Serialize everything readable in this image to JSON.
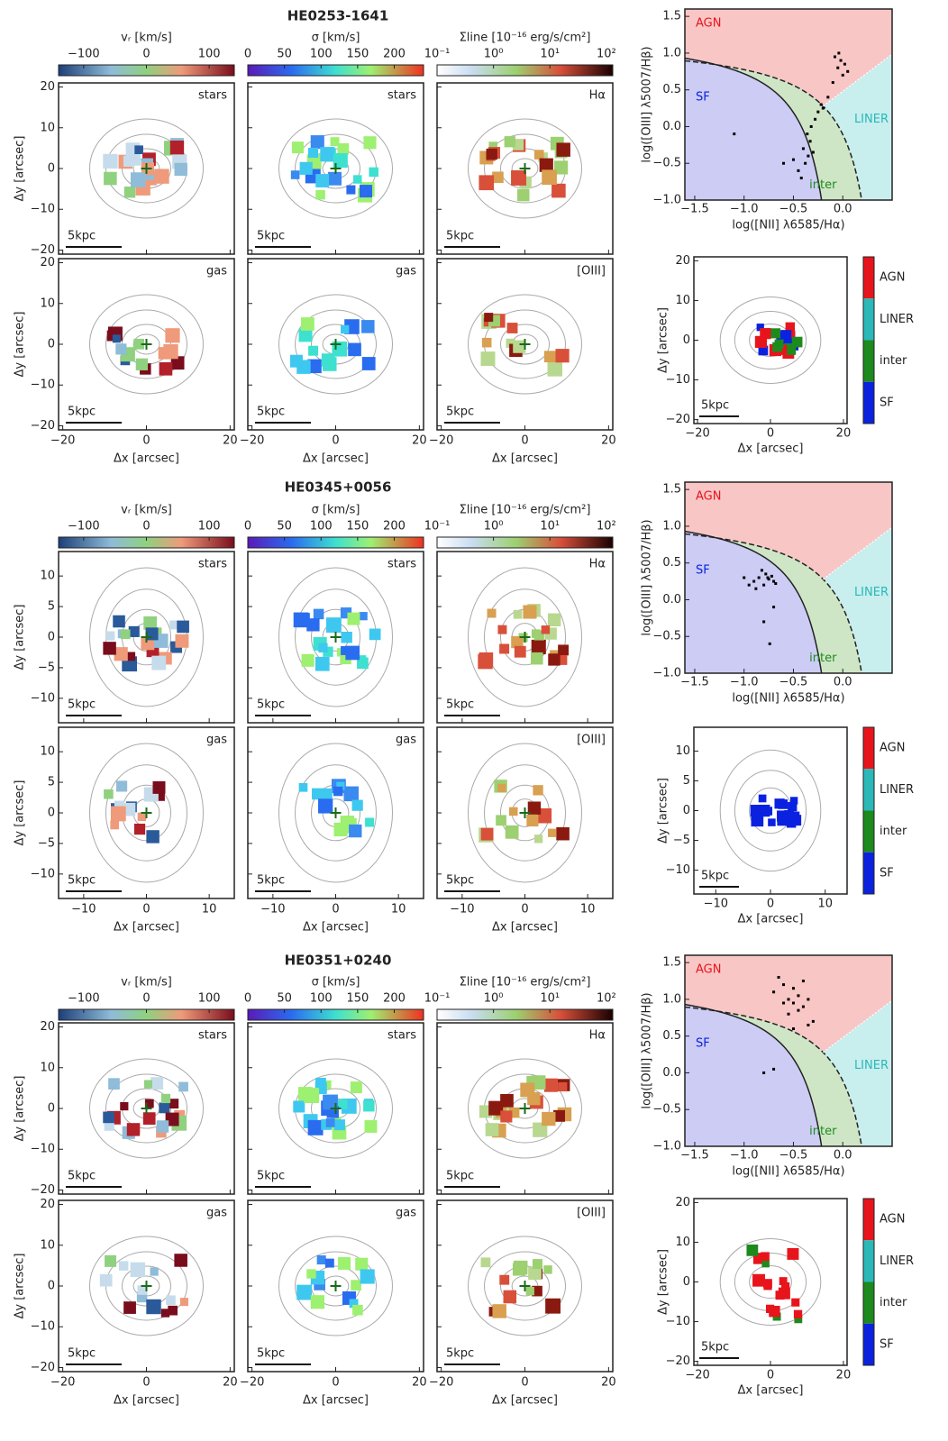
{
  "figure": {
    "colorbars": [
      {
        "label": "vᵣ [km/s]",
        "lim": [
          -140,
          140
        ],
        "ticks": [
          {
            "value": -100,
            "label": "−100"
          },
          0,
          100
        ],
        "cmap": "rdbu"
      },
      {
        "label": "σ [km/s]",
        "lim": [
          0,
          240
        ],
        "ticks": [
          0,
          50,
          100,
          150,
          200
        ],
        "cmap": "rainbow"
      },
      {
        "label": "Σline [10⁻¹⁶ erg/s/cm²]",
        "lim": [
          0.1,
          130
        ],
        "log": true,
        "ticks": [
          {
            "value": 0.1,
            "label": "10⁻¹"
          },
          {
            "value": 1,
            "label": "10⁰"
          },
          {
            "value": 10,
            "label": "10¹"
          },
          {
            "value": 100,
            "label": "10²"
          }
        ],
        "cmap": "heat"
      }
    ],
    "panel_labels": [
      [
        "stars",
        "stars",
        "Hα"
      ],
      [
        "gas",
        "gas",
        "[OIII]"
      ]
    ],
    "scale_bar": "5kpc",
    "xlabel": "Δx [arcsec]",
    "ylabel": "Δy [arcsec]",
    "bpt": {
      "xlabel": "log([NII] λ6585/Hα)",
      "ylabel": "log([OIII] λ5007/Hβ)",
      "xlim": [
        -1.6,
        0.5
      ],
      "ylim": [
        -1,
        1.6
      ],
      "xticks": [
        {
          "value": -1.5,
          "label": "−1.5"
        },
        {
          "value": -1,
          "label": "−1.0"
        },
        {
          "value": -0.5,
          "label": "−0.5"
        },
        {
          "value": 0,
          "label": "0.0"
        }
      ],
      "yticks": [
        {
          "value": -1,
          "label": "−1.0"
        },
        {
          "value": -0.5,
          "label": "−0.5"
        },
        {
          "value": 0,
          "label": "0.0"
        },
        0.5,
        {
          "value": 1,
          "label": "1.0"
        },
        1.5
      ]
    },
    "classes": [
      {
        "name": "AGN",
        "color": "#e8141c",
        "region_color": "#f9c6c6"
      },
      {
        "name": "LINER",
        "color": "#2ab8b8",
        "region_color": "#c8eeee"
      },
      {
        "name": "inter",
        "color": "#1d8a1d",
        "region_color": "#cfe6c6"
      },
      {
        "name": "SF",
        "color": "#0a22e0",
        "region_color": "#ccccf4"
      }
    ],
    "galaxies": [
      {
        "title": "HE0253-1641",
        "map_lim": [
          -21,
          21
        ],
        "map_xticks": [
          {
            "value": -20,
            "label": "−20"
          },
          0,
          20
        ],
        "map_yticks": [
          {
            "value": -20,
            "label": "−20"
          },
          {
            "value": -10,
            "label": "−10"
          },
          0,
          10,
          20
        ],
        "bpt_points": {
          "x": [
            -0.45,
            -0.4,
            -0.38,
            -0.35,
            -0.33,
            -0.3,
            -0.42,
            -0.36,
            -0.32,
            -0.28,
            -0.25,
            -0.22,
            -0.2,
            -0.15,
            -0.1,
            -0.05,
            -0.02,
            0.0,
            0.02,
            -0.08,
            -0.04,
            0.05,
            -0.5,
            -1.1,
            -0.6
          ],
          "y": [
            -0.6,
            -0.3,
            -0.5,
            -0.4,
            -0.2,
            -0.35,
            -0.7,
            -0.1,
            0.0,
            0.1,
            0.2,
            0.3,
            0.25,
            0.4,
            0.6,
            0.8,
            0.9,
            0.7,
            0.85,
            0.95,
            1.0,
            0.75,
            -0.45,
            -0.1,
            -0.5
          ]
        }
      },
      {
        "title": "HE0345+0056",
        "map_lim": [
          -14,
          14
        ],
        "map_xticks": [
          {
            "value": -10,
            "label": "−10"
          },
          0,
          10
        ],
        "map_yticks": [
          {
            "value": -10,
            "label": "−10"
          },
          {
            "value": -5,
            "label": "−5"
          },
          0,
          5,
          10
        ],
        "bpt_points": {
          "x": [
            -0.9,
            -0.85,
            -0.8,
            -0.78,
            -0.75,
            -0.72,
            -0.7,
            -0.95,
            -0.88,
            -0.82,
            -0.76,
            -0.68,
            -1.0,
            -0.8,
            -0.7,
            -0.74
          ],
          "y": [
            0.25,
            0.3,
            0.2,
            0.35,
            0.28,
            0.32,
            0.25,
            0.2,
            0.15,
            0.4,
            0.3,
            0.22,
            0.3,
            -0.3,
            -0.1,
            -0.6
          ]
        }
      },
      {
        "title": "HE0351+0240",
        "map_lim": [
          -21,
          21
        ],
        "map_xticks": [
          {
            "value": -20,
            "label": "−20"
          },
          0,
          20
        ],
        "map_yticks": [
          {
            "value": -20,
            "label": "−20"
          },
          {
            "value": -10,
            "label": "−10"
          },
          0,
          10,
          20
        ],
        "bpt_points": {
          "x": [
            -0.7,
            -0.6,
            -0.55,
            -0.5,
            -0.45,
            -0.4,
            -0.35,
            -0.5,
            -0.55,
            -0.45,
            -0.6,
            -0.3,
            -0.65,
            -0.4,
            -0.5,
            -0.35,
            -0.8,
            -0.7
          ],
          "y": [
            1.1,
            1.2,
            1.0,
            0.95,
            1.05,
            0.9,
            1.0,
            1.15,
            0.8,
            0.85,
            0.95,
            0.7,
            1.3,
            1.25,
            0.6,
            0.65,
            0.0,
            0.05
          ]
        }
      }
    ]
  }
}
